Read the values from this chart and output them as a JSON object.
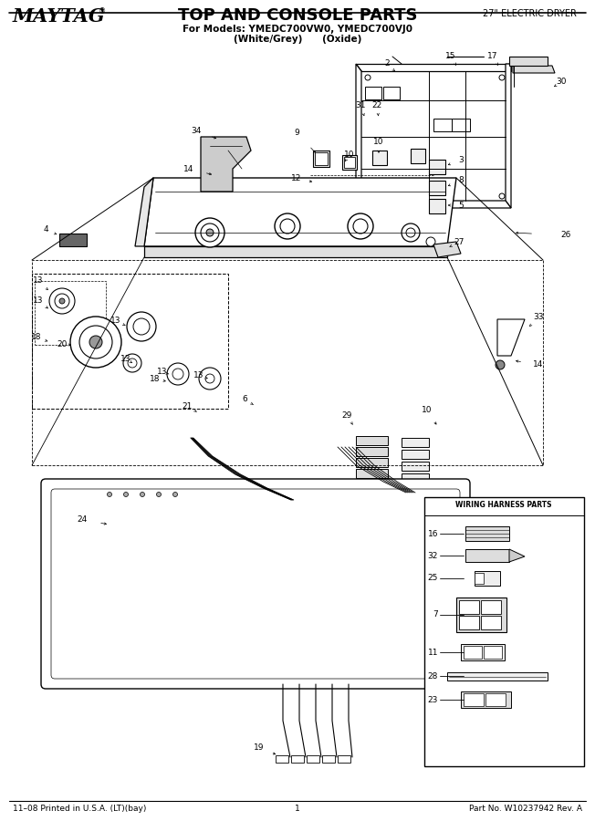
{
  "title": "TOP AND CONSOLE PARTS",
  "brand": "MAYTAG",
  "subtitle1": "For Models: YMEDC700VW0, YMEDC700VJ0",
  "subtitle2": "(White/Grey)      (Oxide)",
  "appliance": "27\" ELECTRIC DRYER",
  "footer_left": "11–08 Printed in U.S.A. (LT)(bay)",
  "footer_center": "1",
  "footer_right": "Part No. W10237942 Rev. A",
  "bg_color": "#ffffff",
  "fig_width": 6.52,
  "fig_height": 9.0,
  "dpi": 100
}
